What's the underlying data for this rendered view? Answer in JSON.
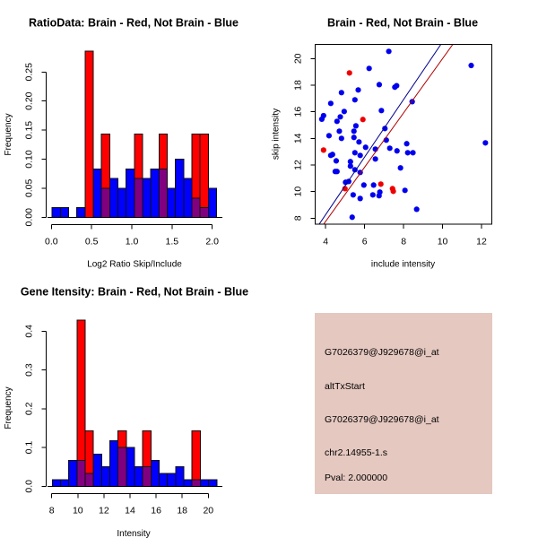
{
  "page": {
    "background": "#FFFFFF"
  },
  "chart_data": [
    {
      "type": "bar",
      "kind": "overlaid-histogram",
      "title": "RatioData: Brain - Red, Not Brain - Blue",
      "xlabel": "Log2 Ratio Skip/Include",
      "ylabel": "Frequency",
      "xlim": [
        0,
        2
      ],
      "ylim": [
        0,
        0.25
      ],
      "bin_start": 0.01,
      "bin_width": 0.1022,
      "n_bins": 20,
      "series": [
        {
          "name": "Not Brain",
          "color": "#0000FF",
          "values": [
            0.017,
            0.017,
            0,
            0.017,
            0,
            0.083,
            0.05,
            0.067,
            0.05,
            0.083,
            0.067,
            0.067,
            0.083,
            0.083,
            0.05,
            0.1,
            0.067,
            0.033,
            0.017,
            0.05
          ]
        },
        {
          "name": "Brain",
          "color": "#FF0000",
          "values": [
            0,
            0,
            0,
            0,
            0.286,
            0,
            0.143,
            0,
            0,
            0,
            0.143,
            0,
            0,
            0.143,
            0,
            0,
            0,
            0.143,
            0.143,
            0
          ]
        }
      ],
      "overlap_color": "#800080",
      "xticks": {
        "values": [
          0,
          0.5,
          1,
          1.5,
          2
        ],
        "labels": [
          "0.0",
          "0.5",
          "1.0",
          "1.5",
          "2.0"
        ]
      },
      "yticks": {
        "values": [
          0,
          0.05,
          0.1,
          0.15,
          0.2,
          0.25
        ],
        "labels": [
          "0.00",
          "0.05",
          "0.10",
          "0.15",
          "0.20",
          "0.25"
        ]
      },
      "grid": false,
      "legend": "none"
    },
    {
      "type": "scatter",
      "title": "Brain - Red, Not Brain - Blue",
      "xlabel": "include intensity",
      "ylabel": "skip intensity",
      "xlim": [
        3.46,
        12.52
      ],
      "ylim": [
        7.55,
        21.08
      ],
      "xticks": {
        "values": [
          4,
          6,
          8,
          10,
          12
        ],
        "labels": [
          "4",
          "6",
          "8",
          "10",
          "12"
        ]
      },
      "yticks": {
        "values": [
          8,
          10,
          12,
          14,
          16,
          18,
          20
        ],
        "labels": [
          "8",
          "10",
          "12",
          "14",
          "16",
          "18",
          "20"
        ]
      },
      "series": [
        {
          "name": "Not Brain",
          "color": "#0000EE",
          "points": [
            [
              7.24,
              20.54
            ],
            [
              11.47,
              19.48
            ],
            [
              6.23,
              19.26
            ],
            [
              6.75,
              18.04
            ],
            [
              7.55,
              17.85
            ],
            [
              7.64,
              17.96
            ],
            [
              5.67,
              17.64
            ],
            [
              4.81,
              17.44
            ],
            [
              5.5,
              16.9
            ],
            [
              4.26,
              16.63
            ],
            [
              8.44,
              16.76
            ],
            [
              6.86,
              16.09
            ],
            [
              4.95,
              16.02
            ],
            [
              3.89,
              15.71
            ],
            [
              3.8,
              15.44
            ],
            [
              4.75,
              15.62
            ],
            [
              4.58,
              15.28
            ],
            [
              5.55,
              14.94
            ],
            [
              7.04,
              14.74
            ],
            [
              4.7,
              14.54
            ],
            [
              5.45,
              14.54
            ],
            [
              4.17,
              14.2
            ],
            [
              4.81,
              14.0
            ],
            [
              5.45,
              14.07
            ],
            [
              5.71,
              13.73
            ],
            [
              7.11,
              13.87
            ],
            [
              12.2,
              13.66
            ],
            [
              8.16,
              13.6
            ],
            [
              6.05,
              13.33
            ],
            [
              6.55,
              13.19
            ],
            [
              7.29,
              13.26
            ],
            [
              7.66,
              13.06
            ],
            [
              5.5,
              12.92
            ],
            [
              8.21,
              12.92
            ],
            [
              8.48,
              12.92
            ],
            [
              4.35,
              12.79
            ],
            [
              4.26,
              12.72
            ],
            [
              5.77,
              12.72
            ],
            [
              6.55,
              12.45
            ],
            [
              5.27,
              12.25
            ],
            [
              4.54,
              12.31
            ],
            [
              5.27,
              11.91
            ],
            [
              7.84,
              11.78
            ],
            [
              5.5,
              11.64
            ],
            [
              4.49,
              11.51
            ],
            [
              4.58,
              11.51
            ],
            [
              5.77,
              11.44
            ],
            [
              5.18,
              10.76
            ],
            [
              5.02,
              10.7
            ],
            [
              5.96,
              10.49
            ],
            [
              6.46,
              10.49
            ],
            [
              6.78,
              9.96
            ],
            [
              6.74,
              9.69
            ],
            [
              8.07,
              10.09
            ],
            [
              5.41,
              9.75
            ],
            [
              6.42,
              9.75
            ],
            [
              5.77,
              9.48
            ],
            [
              8.67,
              8.67
            ],
            [
              5.36,
              8.07
            ]
          ]
        },
        {
          "name": "Brain",
          "color": "#EE0000",
          "points": [
            [
              5.22,
              18.92
            ],
            [
              5.91,
              15.42
            ],
            [
              3.89,
              13.12
            ],
            [
              4.99,
              10.22
            ],
            [
              6.83,
              10.56
            ],
            [
              7.43,
              10.22
            ],
            [
              7.47,
              10.02
            ]
          ]
        }
      ],
      "lines": [
        {
          "name": "Not Brain fit",
          "color": "#00008B",
          "slope": 2.164,
          "intercept": -0.385
        },
        {
          "name": "Brain fit",
          "color": "#B00000",
          "slope": 2.039,
          "intercept": -0.394
        }
      ],
      "grid": false,
      "legend": "none"
    },
    {
      "type": "bar",
      "kind": "overlaid-histogram",
      "title": "Gene Itensity: Brain - Red, Not Brain - Blue",
      "xlabel": "Intensity",
      "ylabel": "Frequency",
      "xlim": [
        8,
        20
      ],
      "ylim": [
        0,
        0.4
      ],
      "bin_start": 8.04,
      "bin_width": 0.6305,
      "n_bins": 20,
      "series": [
        {
          "name": "Not Brain",
          "color": "#0000FF",
          "values": [
            0.017,
            0.017,
            0.067,
            0.067,
            0.033,
            0.083,
            0.05,
            0.117,
            0.1,
            0.1,
            0.05,
            0.05,
            0.067,
            0.033,
            0.033,
            0.05,
            0.017,
            0.017,
            0.017,
            0.017
          ]
        },
        {
          "name": "Brain",
          "color": "#FF0000",
          "values": [
            0,
            0,
            0,
            0.429,
            0.143,
            0,
            0,
            0,
            0.143,
            0,
            0,
            0.143,
            0,
            0,
            0,
            0,
            0,
            0.143,
            0,
            0
          ]
        }
      ],
      "overlap_color": "#800080",
      "xticks": {
        "values": [
          8,
          10,
          12,
          14,
          16,
          18,
          20
        ],
        "labels": [
          "8",
          "10",
          "12",
          "14",
          "16",
          "18",
          "20"
        ]
      },
      "yticks": {
        "values": [
          0,
          0.1,
          0.2,
          0.3,
          0.4
        ],
        "labels": [
          "0.0",
          "0.1",
          "0.2",
          "0.3",
          "0.4"
        ]
      },
      "grid": false,
      "legend": "none"
    }
  ],
  "info_box": {
    "background": "#E5C8C0",
    "text_color": "#111111",
    "lines": [
      "G7026379@J929678@i_at",
      "altTxStart",
      "G7026379@J929678@i_at",
      "chr2.14955-1.s"
    ],
    "pval": "Pval: 2.000000",
    "pval_color": "#990000"
  }
}
